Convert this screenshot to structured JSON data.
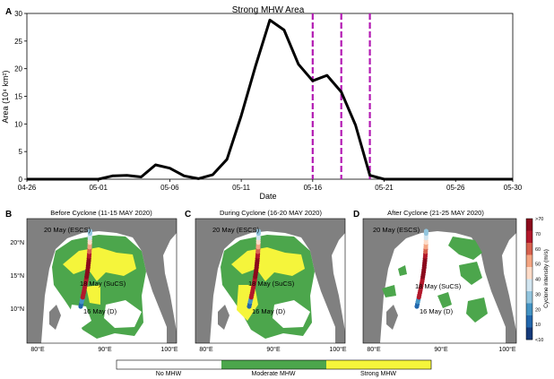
{
  "chart_data": [
    {
      "panel": "A",
      "type": "line",
      "title": "Strong MHW Area",
      "xlabel": "Date",
      "ylabel": "Area (10⁴ km²)",
      "x_ticks": [
        "04-26",
        "05-01",
        "05-06",
        "05-11",
        "05-16",
        "05-21",
        "05-26",
        "05-30"
      ],
      "y_ticks": [
        "0",
        "5",
        "10",
        "15",
        "20",
        "25",
        "30"
      ],
      "xlim": [
        "2020-04-26",
        "2020-05-30"
      ],
      "ylim": [
        0,
        30
      ],
      "x": [
        "2020-04-26",
        "2020-04-27",
        "2020-04-28",
        "2020-04-29",
        "2020-04-30",
        "2020-05-01",
        "2020-05-02",
        "2020-05-03",
        "2020-05-04",
        "2020-05-05",
        "2020-05-06",
        "2020-05-07",
        "2020-05-08",
        "2020-05-09",
        "2020-05-10",
        "2020-05-11",
        "2020-05-12",
        "2020-05-13",
        "2020-05-14",
        "2020-05-15",
        "2020-05-16",
        "2020-05-17",
        "2020-05-18",
        "2020-05-19",
        "2020-05-20",
        "2020-05-21",
        "2020-05-22",
        "2020-05-23",
        "2020-05-24",
        "2020-05-25",
        "2020-05-26",
        "2020-05-27",
        "2020-05-28",
        "2020-05-29",
        "2020-05-30"
      ],
      "series": [
        {
          "values": [
            0,
            0,
            0,
            0,
            0,
            0,
            0.6,
            0.7,
            0.4,
            2.6,
            2.0,
            0.6,
            0.1,
            0.8,
            3.6,
            11.5,
            20.5,
            28.8,
            27.0,
            20.8,
            17.8,
            18.8,
            15.8,
            9.8,
            0.7,
            0,
            0,
            0,
            0,
            0,
            0,
            0,
            0,
            0,
            0
          ],
          "color": "#000000"
        }
      ],
      "vlines": [
        "2020-05-16",
        "2020-05-18",
        "2020-05-20"
      ],
      "vline_color": "#b31ab3",
      "grid": false
    },
    {
      "type": "map",
      "panels": [
        {
          "label": "B",
          "title": "Before Cyclone (11-15 MAY 2020)",
          "track_color_scheme": "intensity"
        },
        {
          "label": "C",
          "title": "During Cyclone (16-20 MAY 2020)",
          "track_color_scheme": "intensity"
        },
        {
          "label": "D",
          "title": "After Cyclone (21-25 MAY 2020)",
          "track_color_scheme": "intensity"
        }
      ],
      "lon_ticks": [
        "80°E",
        "90°E",
        "100°E"
      ],
      "lat_ticks": [
        "20°N",
        "15°N",
        "10°N"
      ],
      "track_labels": [
        "20 May (ESCS)",
        "18 May (SuCS)",
        "16 May (D)"
      ],
      "colors": {
        "land": "#808080",
        "no_mhw": "#ffffff",
        "moderate": "#4ca64c",
        "strong": "#f5f53b"
      },
      "cyclone_colorbar": {
        "label": "Cyclone intensity (m/s)",
        "ticks": [
          ">70",
          "70",
          "60",
          "50",
          "40",
          "30",
          "20",
          "10",
          "<10"
        ],
        "colors": [
          "#8b0a1c",
          "#b2182b",
          "#d6604d",
          "#f4a582",
          "#fddbc7",
          "#d1e5f0",
          "#92c5de",
          "#4393c3",
          "#2166ac",
          "#153a7a"
        ]
      },
      "mhw_legend": [
        {
          "label": "No MHW",
          "color": "#ffffff"
        },
        {
          "label": "Moderate MHW",
          "color": "#4ca64c"
        },
        {
          "label": "Strong MHW",
          "color": "#f5f53b"
        }
      ]
    }
  ]
}
